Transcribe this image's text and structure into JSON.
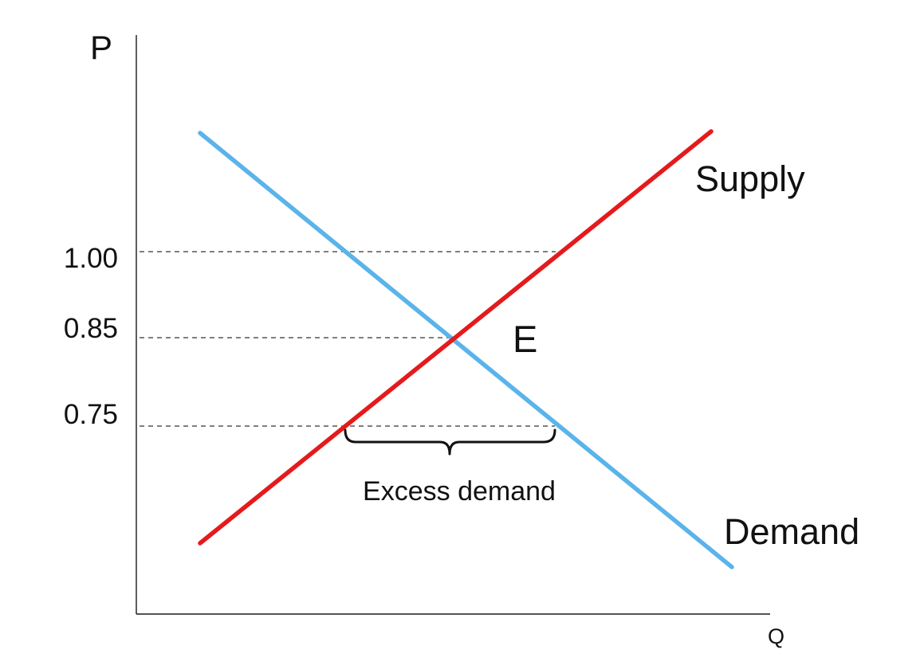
{
  "axes": {
    "y_label": "P",
    "x_label": "Q"
  },
  "price_levels": [
    {
      "label": "1.00",
      "value": 1.0
    },
    {
      "label": "0.85",
      "value": 0.85
    },
    {
      "label": "0.75",
      "value": 0.75
    }
  ],
  "curves": {
    "supply": {
      "label": "Supply",
      "color": "#e41a1c"
    },
    "demand": {
      "label": "Demand",
      "color": "#5ab4ea"
    }
  },
  "equilibrium": {
    "label": "E",
    "price": 0.85
  },
  "annotation": {
    "label": "Excess demand",
    "price": 0.75
  }
}
